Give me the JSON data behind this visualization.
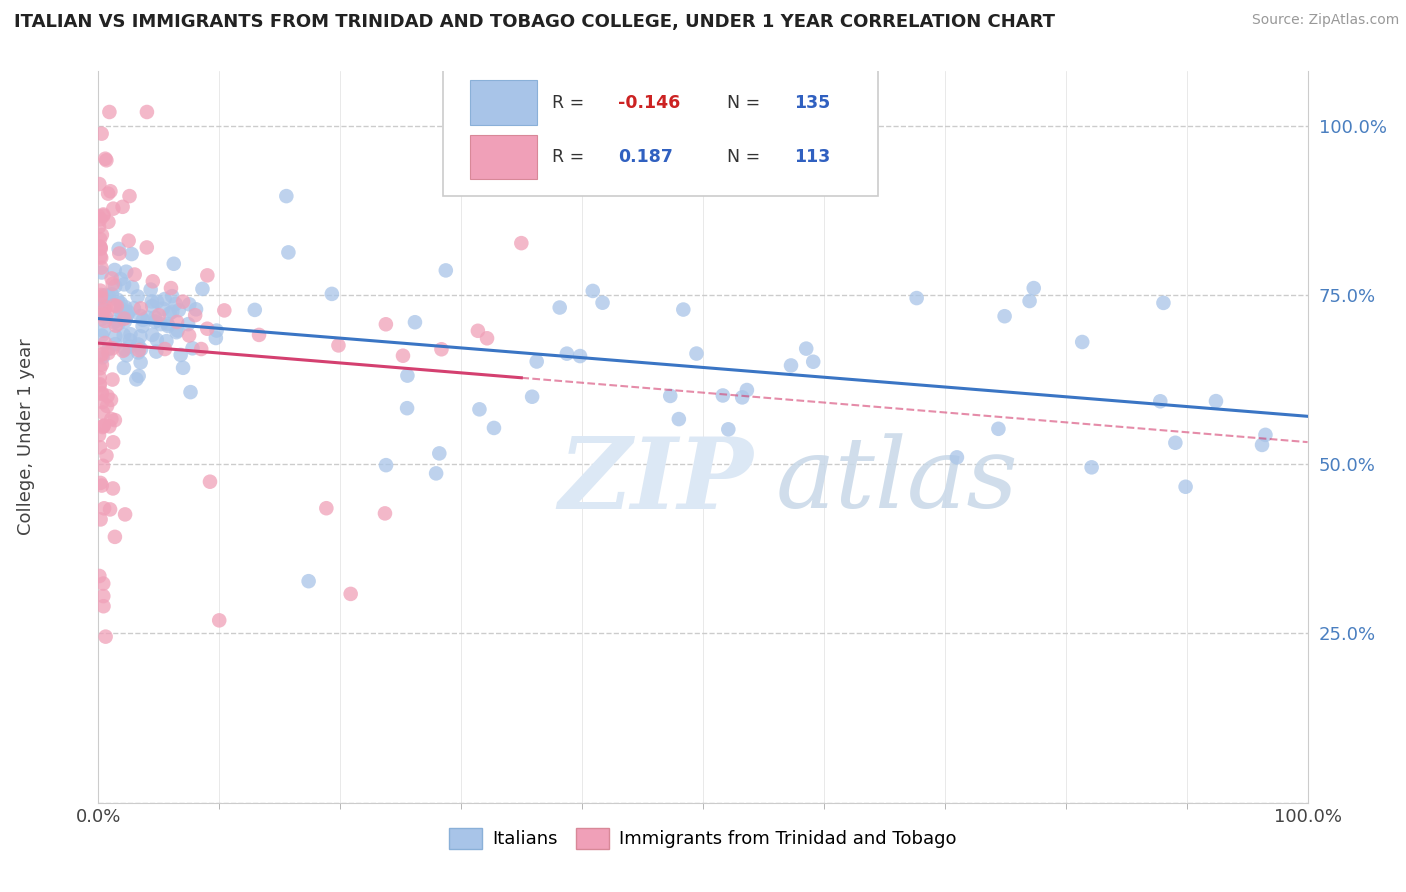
{
  "title": "ITALIAN VS IMMIGRANTS FROM TRINIDAD AND TOBAGO COLLEGE, UNDER 1 YEAR CORRELATION CHART",
  "source": "Source: ZipAtlas.com",
  "ylabel": "College, Under 1 year",
  "color_italian": "#a8c4e8",
  "color_immigrants": "#f0a0b8",
  "trendline_italian": "#3a75c4",
  "trendline_immigrants": "#d44070",
  "background_color": "#ffffff",
  "grid_color": "#cccccc",
  "ytick_color": "#4a7fc0",
  "watermark_color": "#dce8f5",
  "legend_R1": "-0.146",
  "legend_N1": "135",
  "legend_R2": "0.187",
  "legend_N2": "113"
}
